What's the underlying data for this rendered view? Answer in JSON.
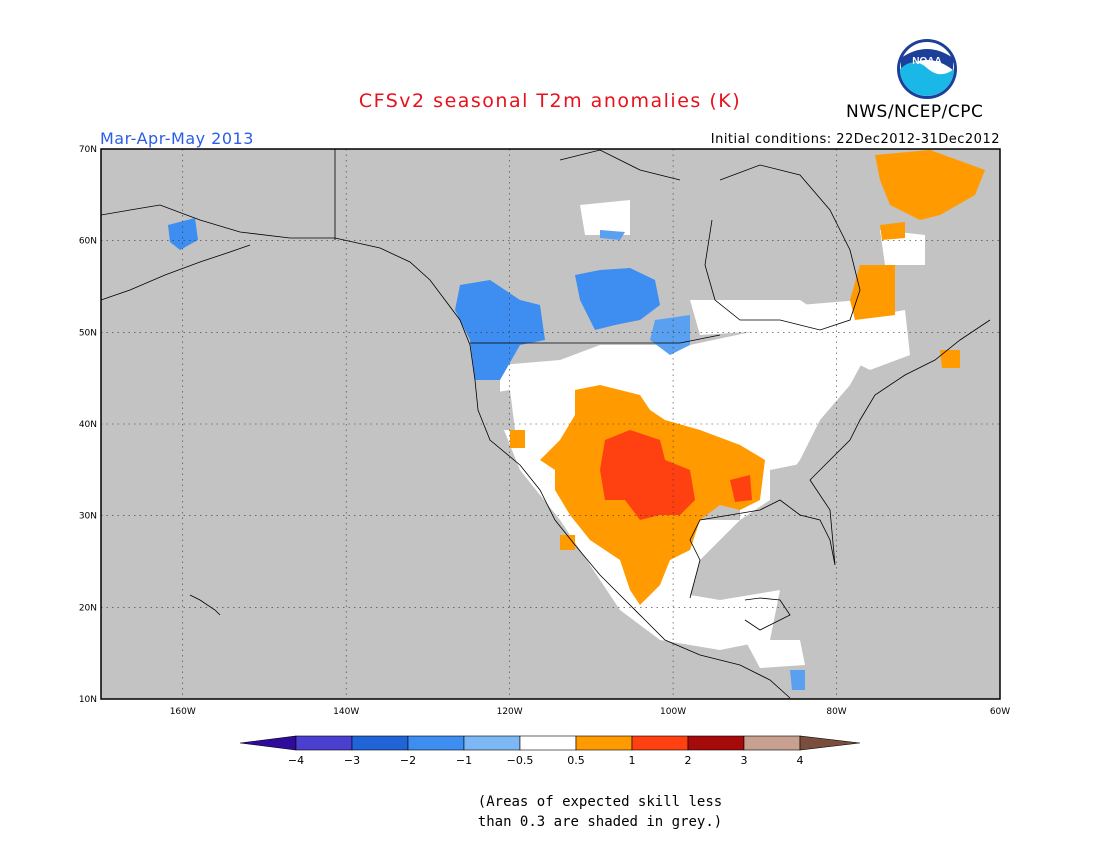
{
  "header": {
    "title": "CFSv2 seasonal T2m anomalies (K)",
    "agency": "NWS/NCEP/CPC",
    "season": "Mar-Apr-May 2013",
    "initial_conditions": "Initial conditions: 22Dec2012-31Dec2012",
    "logo_text": "NOAA"
  },
  "map": {
    "region": "North America",
    "latitude_labels": [
      "70N",
      "60N",
      "50N",
      "40N",
      "30N",
      "20N",
      "10N"
    ],
    "longitude_labels": [
      "160W",
      "140W",
      "120W",
      "100W",
      "80W",
      "60W"
    ],
    "background_color": "#c3c3c3"
  },
  "legend": {
    "levels": [
      "-4",
      "-3",
      "-2",
      "-1",
      "-0.5",
      "0.5",
      "1",
      "2",
      "3",
      "4"
    ],
    "colors": [
      "#2e0b9a",
      "#4b3fd0",
      "#2064d8",
      "#3d8ef0",
      "#7db8f5",
      "#ffffff",
      "#ff9a00",
      "#ff4010",
      "#a50b0b",
      "#c8a090",
      "#7a4e3d"
    ]
  },
  "footnote": {
    "line1": "(Areas of expected skill less",
    "line2": "than 0.3 are shaded in grey.)"
  }
}
